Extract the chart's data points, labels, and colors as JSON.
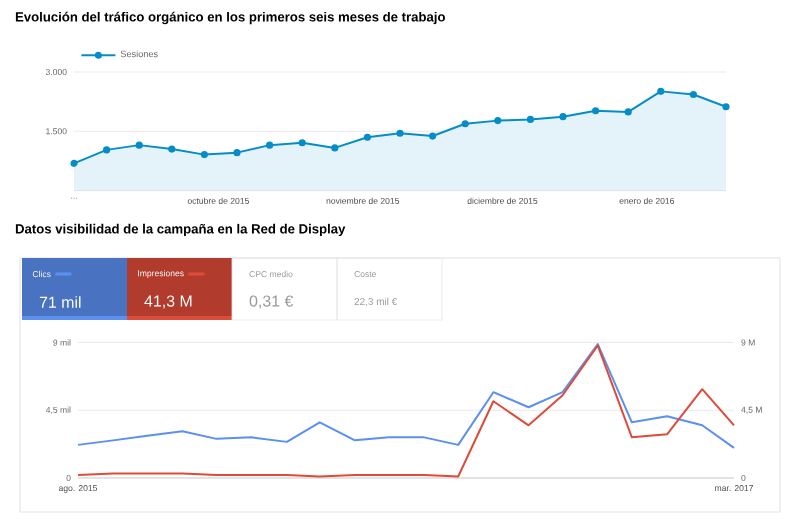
{
  "chart_data": [
    {
      "type": "area",
      "title": "Evolución del tráfico orgánico en los primeros seis meses de trabajo",
      "x": [
        "2015-08-31",
        "2015-09-07",
        "2015-09-14",
        "2015-09-21",
        "2015-09-28",
        "2015-10-05",
        "2015-10-12",
        "2015-10-19",
        "2015-10-26",
        "2015-11-02",
        "2015-11-09",
        "2015-11-16",
        "2015-11-23",
        "2015-11-30",
        "2015-12-07",
        "2015-12-14",
        "2015-12-21",
        "2015-12-28",
        "2016-01-04",
        "2016-01-11",
        "2016-01-18"
      ],
      "series": [
        {
          "name": "Sesiones",
          "color": "#058dc7",
          "values": [
            690,
            1030,
            1150,
            1050,
            910,
            960,
            1150,
            1210,
            1080,
            1350,
            1450,
            1380,
            1690,
            1770,
            1800,
            1870,
            2020,
            1990,
            2510,
            2430,
            2120
          ]
        }
      ],
      "xlim": [
        "2015-08-31",
        "2016-01-18"
      ],
      "xticks": [
        {
          "value": "2015-08-31",
          "label": "..."
        },
        {
          "value": "2015-10-01",
          "label": "octubre de 2015"
        },
        {
          "value": "2015-11-01",
          "label": "noviembre de 2015"
        },
        {
          "value": "2015-12-01",
          "label": "diciembre de 2015"
        },
        {
          "value": "2016-01-01",
          "label": "enero de 2016"
        }
      ],
      "ylim": [
        0,
        3000
      ],
      "yticks": [
        {
          "value": 1500,
          "label": "1.500"
        },
        {
          "value": 3000,
          "label": "3.000"
        }
      ],
      "grid": "y",
      "legend": "top left",
      "marker": "circle"
    },
    {
      "type": "line",
      "title": "Datos visibilidad de la campaña en la Red de Display",
      "x": [
        "2015-08",
        "2015-09",
        "2015-10",
        "2015-11",
        "2015-12",
        "2016-01",
        "2016-02",
        "2016-03",
        "2016-04",
        "2016-05",
        "2016-06",
        "2016-07",
        "2016-08",
        "2016-09",
        "2016-10",
        "2016-11",
        "2016-12",
        "2017-01",
        "2017-02",
        "2017-03"
      ],
      "series": [
        {
          "name": "Clics",
          "color": "#5b8ff0",
          "values": [
            2.2,
            2.5,
            2.8,
            3.1,
            2.6,
            2.7,
            2.4,
            3.7,
            2.5,
            2.7,
            2.7,
            2.2,
            5.7,
            4.7,
            5.7,
            8.9,
            3.7,
            4.1,
            3.5,
            2.0
          ]
        },
        {
          "name": "Impresiones",
          "color": "#dd4b39",
          "axis": "y2",
          "values": [
            0.2,
            0.3,
            0.3,
            0.3,
            0.2,
            0.2,
            0.2,
            0.1,
            0.2,
            0.2,
            0.2,
            0.1,
            5.1,
            3.5,
            5.5,
            8.8,
            2.7,
            2.9,
            5.9,
            3.5
          ]
        }
      ],
      "annotations": [
        "71 mil",
        "41,3 M",
        "CPC medio",
        "0,31 €",
        "Coste",
        "22,3 mil €"
      ],
      "xlim": [
        "2015-08",
        "2017-03"
      ],
      "xticks": [
        {
          "value": "2015-08",
          "label": "ago. 2015"
        },
        {
          "value": "2017-03",
          "label": "mar. 2017"
        }
      ],
      "ylim": [
        0,
        9.3
      ],
      "yticks": [
        0,
        {
          "value": 4.5,
          "label": "4,5 mil"
        },
        {
          "value": 9,
          "label": "9 mil"
        }
      ],
      "y2lim": [
        0,
        9.3
      ],
      "y2ticks": [
        0,
        {
          "value": 4.5,
          "label": "4,5 M"
        },
        {
          "value": 9,
          "label": "9 M"
        }
      ],
      "grid": "y",
      "legend": "top left",
      "marker": "none"
    }
  ]
}
